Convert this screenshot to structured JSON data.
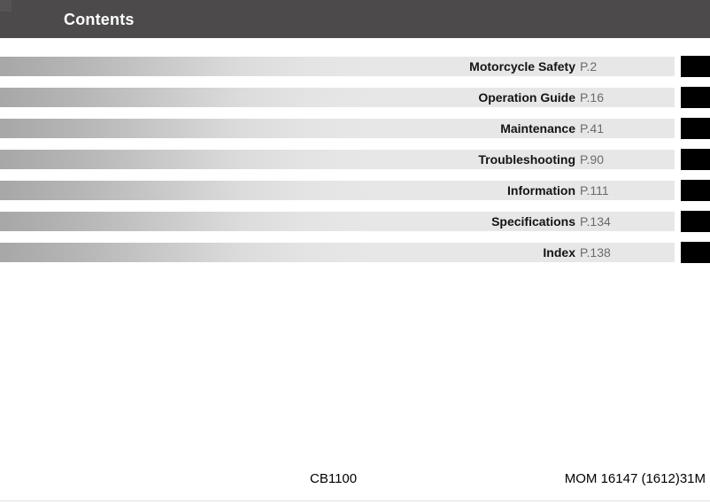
{
  "header": {
    "title": "Contents"
  },
  "toc": {
    "items": [
      {
        "label": "Motorcycle Safety",
        "page": "P.2"
      },
      {
        "label": "Operation Guide",
        "page": "P.16"
      },
      {
        "label": "Maintenance",
        "page": "P.41"
      },
      {
        "label": "Troubleshooting",
        "page": "P.90"
      },
      {
        "label": "Information",
        "page": "P.111"
      },
      {
        "label": "Specifications",
        "page": "P.134"
      },
      {
        "label": "Index",
        "page": "P.138"
      }
    ]
  },
  "footer": {
    "model": "CB1100",
    "document_code": "MOM 16147 (1612)31M"
  },
  "colors": {
    "header_bg": "#4d4a4c",
    "bar_gradient_start": "#a7a7a7",
    "bar_gradient_end": "#e7e7e7",
    "tab": "#000000",
    "page_ref_text": "#6b6b6b"
  }
}
